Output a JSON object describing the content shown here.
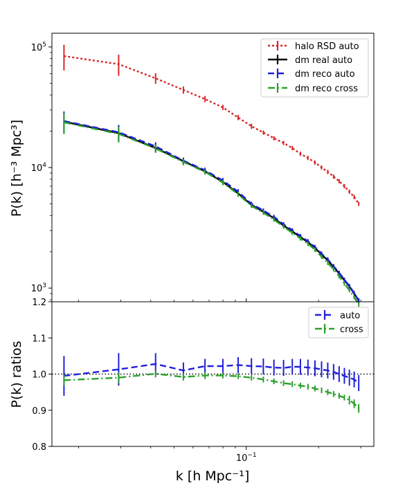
{
  "chart_data": [
    {
      "type": "line",
      "xscale": "log",
      "yscale": "log",
      "xlim": [
        0.0155,
        0.34
      ],
      "ylim": [
        770,
        130000
      ],
      "ylabel": "P(k) [h⁻³ Mpc³]",
      "yticks": [
        {
          "value": 1000,
          "base": "10",
          "exp": "3"
        },
        {
          "value": 10000,
          "base": "10",
          "exp": "4"
        },
        {
          "value": 100000,
          "base": "10",
          "exp": "5"
        }
      ],
      "legend_position": "top-right",
      "x": [
        0.0174,
        0.0294,
        0.0419,
        0.0547,
        0.0673,
        0.0799,
        0.0925,
        0.1051,
        0.1178,
        0.1304,
        0.143,
        0.1555,
        0.1681,
        0.1807,
        0.1933,
        0.2059,
        0.2185,
        0.2311,
        0.2437,
        0.2563,
        0.2689,
        0.2815,
        0.2941
      ],
      "series": [
        {
          "name": "halo RSD auto",
          "color": "#d62728",
          "dash": "3,3",
          "values": [
            84000,
            72000,
            55000,
            44000,
            37000,
            31500,
            26000,
            22000,
            19500,
            17500,
            16000,
            14500,
            13000,
            12000,
            11000,
            10000,
            9200,
            8400,
            7700,
            7000,
            6300,
            5700,
            5000
          ],
          "err": [
            0.24,
            0.2,
            0.1,
            0.07,
            0.06,
            0.05,
            0.05,
            0.05,
            0.04,
            0.04,
            0.04,
            0.04,
            0.04,
            0.04,
            0.04,
            0.04,
            0.04,
            0.04,
            0.04,
            0.04,
            0.04,
            0.04,
            0.04
          ]
        },
        {
          "name": "dm real auto",
          "color": "#000000",
          "dash": "",
          "values": [
            24000,
            19300,
            14500,
            11300,
            9300,
            7600,
            6100,
            4900,
            4300,
            3800,
            3300,
            2950,
            2650,
            2400,
            2150,
            1900,
            1700,
            1500,
            1320,
            1160,
            1030,
            900,
            790
          ],
          "err": [
            0.2,
            0.15,
            0.08,
            0.06,
            0.05,
            0.05,
            0.05,
            0.04,
            0.04,
            0.04,
            0.04,
            0.04,
            0.04,
            0.04,
            0.04,
            0.04,
            0.04,
            0.04,
            0.04,
            0.04,
            0.04,
            0.04,
            0.04
          ]
        },
        {
          "name": "dm reco auto",
          "color": "#1f1fdd",
          "dash": "9,5",
          "values": [
            24300,
            19600,
            15000,
            11400,
            9500,
            7800,
            6300,
            5000,
            4400,
            3900,
            3380,
            3020,
            2700,
            2450,
            2190,
            1930,
            1730,
            1520,
            1340,
            1175,
            1040,
            910,
            780
          ],
          "err": [
            0.2,
            0.15,
            0.08,
            0.06,
            0.05,
            0.05,
            0.05,
            0.04,
            0.04,
            0.04,
            0.04,
            0.04,
            0.04,
            0.04,
            0.04,
            0.04,
            0.04,
            0.04,
            0.04,
            0.04,
            0.04,
            0.04,
            0.04
          ]
        },
        {
          "name": "dm reco cross",
          "color": "#2ca02c",
          "dash": "10,4,2,4",
          "values": [
            23700,
            19000,
            14400,
            11100,
            9200,
            7500,
            6000,
            4800,
            4220,
            3700,
            3230,
            2870,
            2580,
            2330,
            2080,
            1820,
            1620,
            1430,
            1250,
            1090,
            960,
            840,
            730
          ],
          "err": [
            0.2,
            0.15,
            0.08,
            0.06,
            0.05,
            0.05,
            0.05,
            0.04,
            0.04,
            0.04,
            0.04,
            0.04,
            0.04,
            0.04,
            0.04,
            0.04,
            0.04,
            0.04,
            0.04,
            0.04,
            0.04,
            0.04,
            0.04
          ]
        }
      ]
    },
    {
      "type": "line",
      "xscale": "log",
      "yscale": "linear",
      "xlim": [
        0.0155,
        0.34
      ],
      "ylim": [
        0.8,
        1.2
      ],
      "ylabel": "P(k) ratios",
      "xlabel": "k [h Mpc⁻¹]",
      "yticks": [
        "0.8",
        "0.9",
        "1.0",
        "1.1",
        "1.2"
      ],
      "xticks": [
        {
          "value": 0.1,
          "base": "10",
          "exp": "−1"
        }
      ],
      "reference_line": 1.0,
      "legend_position": "top-right",
      "x": [
        0.0174,
        0.0294,
        0.0419,
        0.0547,
        0.0673,
        0.0799,
        0.0925,
        0.1051,
        0.1178,
        0.1304,
        0.143,
        0.1555,
        0.1681,
        0.1807,
        0.1933,
        0.2059,
        0.2185,
        0.2311,
        0.2437,
        0.2563,
        0.2689,
        0.2815,
        0.2941
      ],
      "series": [
        {
          "name": "auto",
          "color": "#1f1fdd",
          "dash": "9,5",
          "values": [
            0.995,
            1.013,
            1.028,
            1.01,
            1.022,
            1.022,
            1.025,
            1.022,
            1.021,
            1.018,
            1.017,
            1.02,
            1.02,
            1.018,
            1.016,
            1.013,
            1.01,
            1.006,
            1.0,
            0.995,
            0.99,
            0.985,
            0.975
          ],
          "err": [
            0.055,
            0.045,
            0.03,
            0.022,
            0.02,
            0.02,
            0.022,
            0.022,
            0.022,
            0.022,
            0.022,
            0.022,
            0.022,
            0.022,
            0.022,
            0.022,
            0.022,
            0.022,
            0.022,
            0.022,
            0.022,
            0.022,
            0.022
          ]
        },
        {
          "name": "cross",
          "color": "#2ca02c",
          "dash": "10,4,2,4",
          "values": [
            0.983,
            0.99,
            1.001,
            0.992,
            0.996,
            0.996,
            0.994,
            0.99,
            0.985,
            0.98,
            0.975,
            0.972,
            0.968,
            0.965,
            0.96,
            0.955,
            0.95,
            0.945,
            0.94,
            0.935,
            0.928,
            0.918,
            0.905
          ],
          "err": [
            0.015,
            0.015,
            0.01,
            0.01,
            0.01,
            0.008,
            0.008,
            0.008,
            0.008,
            0.008,
            0.008,
            0.008,
            0.008,
            0.008,
            0.008,
            0.008,
            0.008,
            0.008,
            0.008,
            0.008,
            0.012,
            0.012,
            0.012
          ]
        }
      ]
    }
  ]
}
